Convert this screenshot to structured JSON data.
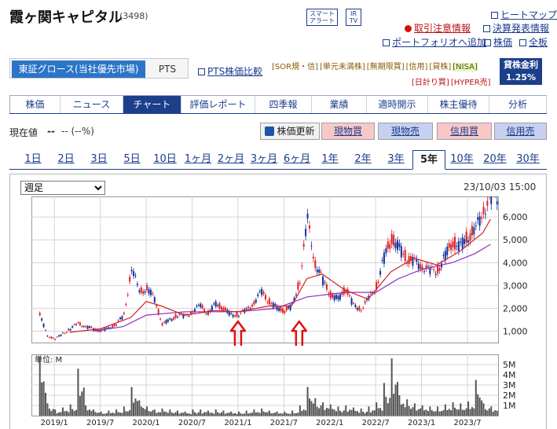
{
  "header": {
    "title": "霞ヶ関キャピタル",
    "code": "(3498)",
    "smart_alert": "スマート\nアラート",
    "ir_tv": "IR\nTV",
    "links": [
      "ヒートマップ",
      "取引注意情報",
      "決算発表情報",
      "ポートフォリオへ追加",
      "株価",
      "全板"
    ]
  },
  "market": {
    "tabs": [
      "東証グロース(当社優先市場)",
      "PTS"
    ],
    "pts_compare": "PTS株価比較",
    "badges_row1": [
      "[SOR規・信]",
      "[単元未満株]",
      "[無期限買]",
      "[信用]",
      "[貸株]",
      "[NISA]"
    ],
    "badges_row2": [
      "[日計り買]",
      "[HYPER売]"
    ],
    "lending_label": "貸株金利",
    "lending_rate": "1.25%"
  },
  "tabs": [
    "株価",
    "ニュース",
    "チャート",
    "評価レポート",
    "四季報",
    "業績",
    "適時開示",
    "株主優待",
    "分析"
  ],
  "price": {
    "label": "現在値",
    "value": "--",
    "change": "-- (--%)"
  },
  "actions": {
    "update": "株価更新",
    "genbuy": "現物買",
    "gensell": "現物売",
    "shinbuy": "信用買",
    "shinsell": "信用売"
  },
  "periods": [
    "1日",
    "2日",
    "3日",
    "5日",
    "10日",
    "1ヶ月",
    "2ヶ月",
    "3ヶ月",
    "6ヶ月",
    "1年",
    "2年",
    "3年",
    "5年",
    "10年",
    "20年",
    "30年"
  ],
  "chart_controls": {
    "select_value": "週足",
    "date": "23/10/03 15:00"
  },
  "colors": {
    "accent": "#1c3f8a",
    "candle_up": "#e02020",
    "candle_down": "#1030a0",
    "ma_short": "#d02020",
    "ma_long": "#9030c0",
    "volume": "#555555",
    "arrow": "#e01010"
  },
  "chart_data": {
    "type": "line",
    "title": "",
    "xlabel": "",
    "ylabel": "",
    "x_ticks": [
      "2019/1",
      "2019/7",
      "2020/1",
      "2020/7",
      "2021/1",
      "2021/7",
      "2022/1",
      "2022/7",
      "2023/1",
      "2023/7"
    ],
    "y_ticks": [
      "1,000",
      "2,000",
      "3,000",
      "4,000",
      "5,000",
      "6,000"
    ],
    "ylim": [
      500,
      6900
    ],
    "grid": true,
    "series": [
      {
        "role": "price",
        "points": [
          [
            "2018-11",
            1700
          ],
          [
            "2018-12",
            800
          ],
          [
            "2019-01",
            650
          ],
          [
            "2019-02",
            900
          ],
          [
            "2019-03",
            1100
          ],
          [
            "2019-04",
            1350
          ],
          [
            "2019-05",
            1200
          ],
          [
            "2019-06",
            1100
          ],
          [
            "2019-07",
            1000
          ],
          [
            "2019-08",
            1150
          ],
          [
            "2019-09",
            1300
          ],
          [
            "2019-10",
            1700
          ],
          [
            "2019-11",
            3800
          ],
          [
            "2019-12",
            2700
          ],
          [
            "2020-01",
            2900
          ],
          [
            "2020-02",
            2400
          ],
          [
            "2020-03",
            1300
          ],
          [
            "2020-04",
            1500
          ],
          [
            "2020-05",
            1700
          ],
          [
            "2020-06",
            1650
          ],
          [
            "2020-07",
            1900
          ],
          [
            "2020-08",
            2100
          ],
          [
            "2020-09",
            1800
          ],
          [
            "2020-10",
            2200
          ],
          [
            "2020-11",
            2000
          ],
          [
            "2020-12",
            1700
          ],
          [
            "2021-01",
            1750
          ],
          [
            "2021-02",
            1900
          ],
          [
            "2021-03",
            2300
          ],
          [
            "2021-04",
            2700
          ],
          [
            "2021-05",
            2300
          ],
          [
            "2021-06",
            2000
          ],
          [
            "2021-07",
            1900
          ],
          [
            "2021-08",
            2100
          ],
          [
            "2021-09",
            3300
          ],
          [
            "2021-10",
            5800
          ],
          [
            "2021-11",
            4000
          ],
          [
            "2021-12",
            3200
          ],
          [
            "2022-01",
            2600
          ],
          [
            "2022-02",
            2400
          ],
          [
            "2022-03",
            2900
          ],
          [
            "2022-04",
            2100
          ],
          [
            "2022-05",
            2000
          ],
          [
            "2022-06",
            2400
          ],
          [
            "2022-07",
            3000
          ],
          [
            "2022-08",
            4200
          ],
          [
            "2022-09",
            5100
          ],
          [
            "2022-10",
            4600
          ],
          [
            "2022-11",
            4200
          ],
          [
            "2022-12",
            4000
          ],
          [
            "2023-01",
            3900
          ],
          [
            "2023-02",
            3600
          ],
          [
            "2023-03",
            3700
          ],
          [
            "2023-04",
            4300
          ],
          [
            "2023-05",
            4900
          ],
          [
            "2023-06",
            4700
          ],
          [
            "2023-07",
            5200
          ],
          [
            "2023-08",
            5400
          ],
          [
            "2023-09",
            6400
          ],
          [
            "2023-10",
            6900
          ]
        ]
      },
      {
        "role": "ma_short",
        "points": [
          [
            "2019-03",
            950
          ],
          [
            "2019-07",
            1100
          ],
          [
            "2019-11",
            1600
          ],
          [
            "2020-01",
            2300
          ],
          [
            "2020-03",
            2100
          ],
          [
            "2020-06",
            1700
          ],
          [
            "2020-10",
            1900
          ],
          [
            "2021-01",
            1850
          ],
          [
            "2021-05",
            2100
          ],
          [
            "2021-08",
            2100
          ],
          [
            "2021-10",
            3300
          ],
          [
            "2021-12",
            3500
          ],
          [
            "2022-03",
            2800
          ],
          [
            "2022-06",
            2400
          ],
          [
            "2022-09",
            3600
          ],
          [
            "2022-12",
            4200
          ],
          [
            "2023-03",
            3900
          ],
          [
            "2023-06",
            4500
          ],
          [
            "2023-09",
            5300
          ],
          [
            "2023-10",
            5900
          ]
        ]
      },
      {
        "role": "ma_long",
        "points": [
          [
            "2019-06",
            1000
          ],
          [
            "2019-10",
            1200
          ],
          [
            "2020-01",
            1700
          ],
          [
            "2020-06",
            1850
          ],
          [
            "2021-01",
            1850
          ],
          [
            "2021-06",
            2000
          ],
          [
            "2021-10",
            2500
          ],
          [
            "2022-03",
            2700
          ],
          [
            "2022-07",
            2700
          ],
          [
            "2022-10",
            3300
          ],
          [
            "2023-01",
            3700
          ],
          [
            "2023-05",
            4000
          ],
          [
            "2023-08",
            4400
          ],
          [
            "2023-10",
            4800
          ]
        ]
      }
    ],
    "volume": {
      "unit_label": "単位: M",
      "y_ticks": [
        "1M",
        "2M",
        "3M",
        "4M",
        "5M"
      ],
      "ylim": [
        0,
        6
      ],
      "points": [
        [
          "2018-11",
          5.8
        ],
        [
          "2018-12",
          1.2
        ],
        [
          "2019-01",
          0.6
        ],
        [
          "2019-02",
          0.8
        ],
        [
          "2019-03",
          1.1
        ],
        [
          "2019-04",
          4.6
        ],
        [
          "2019-05",
          1.0
        ],
        [
          "2019-06",
          0.6
        ],
        [
          "2019-07",
          0.4
        ],
        [
          "2019-08",
          0.5
        ],
        [
          "2019-09",
          0.6
        ],
        [
          "2019-10",
          0.9
        ],
        [
          "2019-11",
          2.8
        ],
        [
          "2019-12",
          1.5
        ],
        [
          "2020-01",
          0.9
        ],
        [
          "2020-02",
          0.6
        ],
        [
          "2020-03",
          0.7
        ],
        [
          "2020-04",
          0.6
        ],
        [
          "2020-05",
          0.5
        ],
        [
          "2020-06",
          0.4
        ],
        [
          "2020-07",
          0.6
        ],
        [
          "2020-08",
          0.6
        ],
        [
          "2020-09",
          0.5
        ],
        [
          "2020-10",
          0.6
        ],
        [
          "2020-11",
          0.5
        ],
        [
          "2020-12",
          0.4
        ],
        [
          "2021-01",
          0.4
        ],
        [
          "2021-02",
          0.5
        ],
        [
          "2021-03",
          0.6
        ],
        [
          "2021-04",
          0.7
        ],
        [
          "2021-05",
          0.5
        ],
        [
          "2021-06",
          0.4
        ],
        [
          "2021-07",
          0.4
        ],
        [
          "2021-08",
          0.5
        ],
        [
          "2021-09",
          1.0
        ],
        [
          "2021-10",
          2.8
        ],
        [
          "2021-11",
          1.7
        ],
        [
          "2021-12",
          1.3
        ],
        [
          "2022-01",
          1.1
        ],
        [
          "2022-02",
          0.9
        ],
        [
          "2022-03",
          1.0
        ],
        [
          "2022-04",
          0.8
        ],
        [
          "2022-05",
          0.7
        ],
        [
          "2022-06",
          0.9
        ],
        [
          "2022-07",
          1.3
        ],
        [
          "2022-08",
          3.2
        ],
        [
          "2022-09",
          5.6
        ],
        [
          "2022-10",
          2.0
        ],
        [
          "2022-11",
          1.6
        ],
        [
          "2022-12",
          1.2
        ],
        [
          "2023-01",
          1.0
        ],
        [
          "2023-02",
          0.9
        ],
        [
          "2023-03",
          0.9
        ],
        [
          "2023-04",
          1.1
        ],
        [
          "2023-05",
          1.3
        ],
        [
          "2023-06",
          1.2
        ],
        [
          "2023-07",
          1.4
        ],
        [
          "2023-08",
          3.5
        ],
        [
          "2023-09",
          1.2
        ],
        [
          "2023-10",
          0.9
        ]
      ]
    },
    "annotations": [
      {
        "type": "up-arrow",
        "x": "2021-01",
        "y": 1150
      },
      {
        "type": "up-arrow",
        "x": "2021-09",
        "y": 1150
      }
    ]
  }
}
